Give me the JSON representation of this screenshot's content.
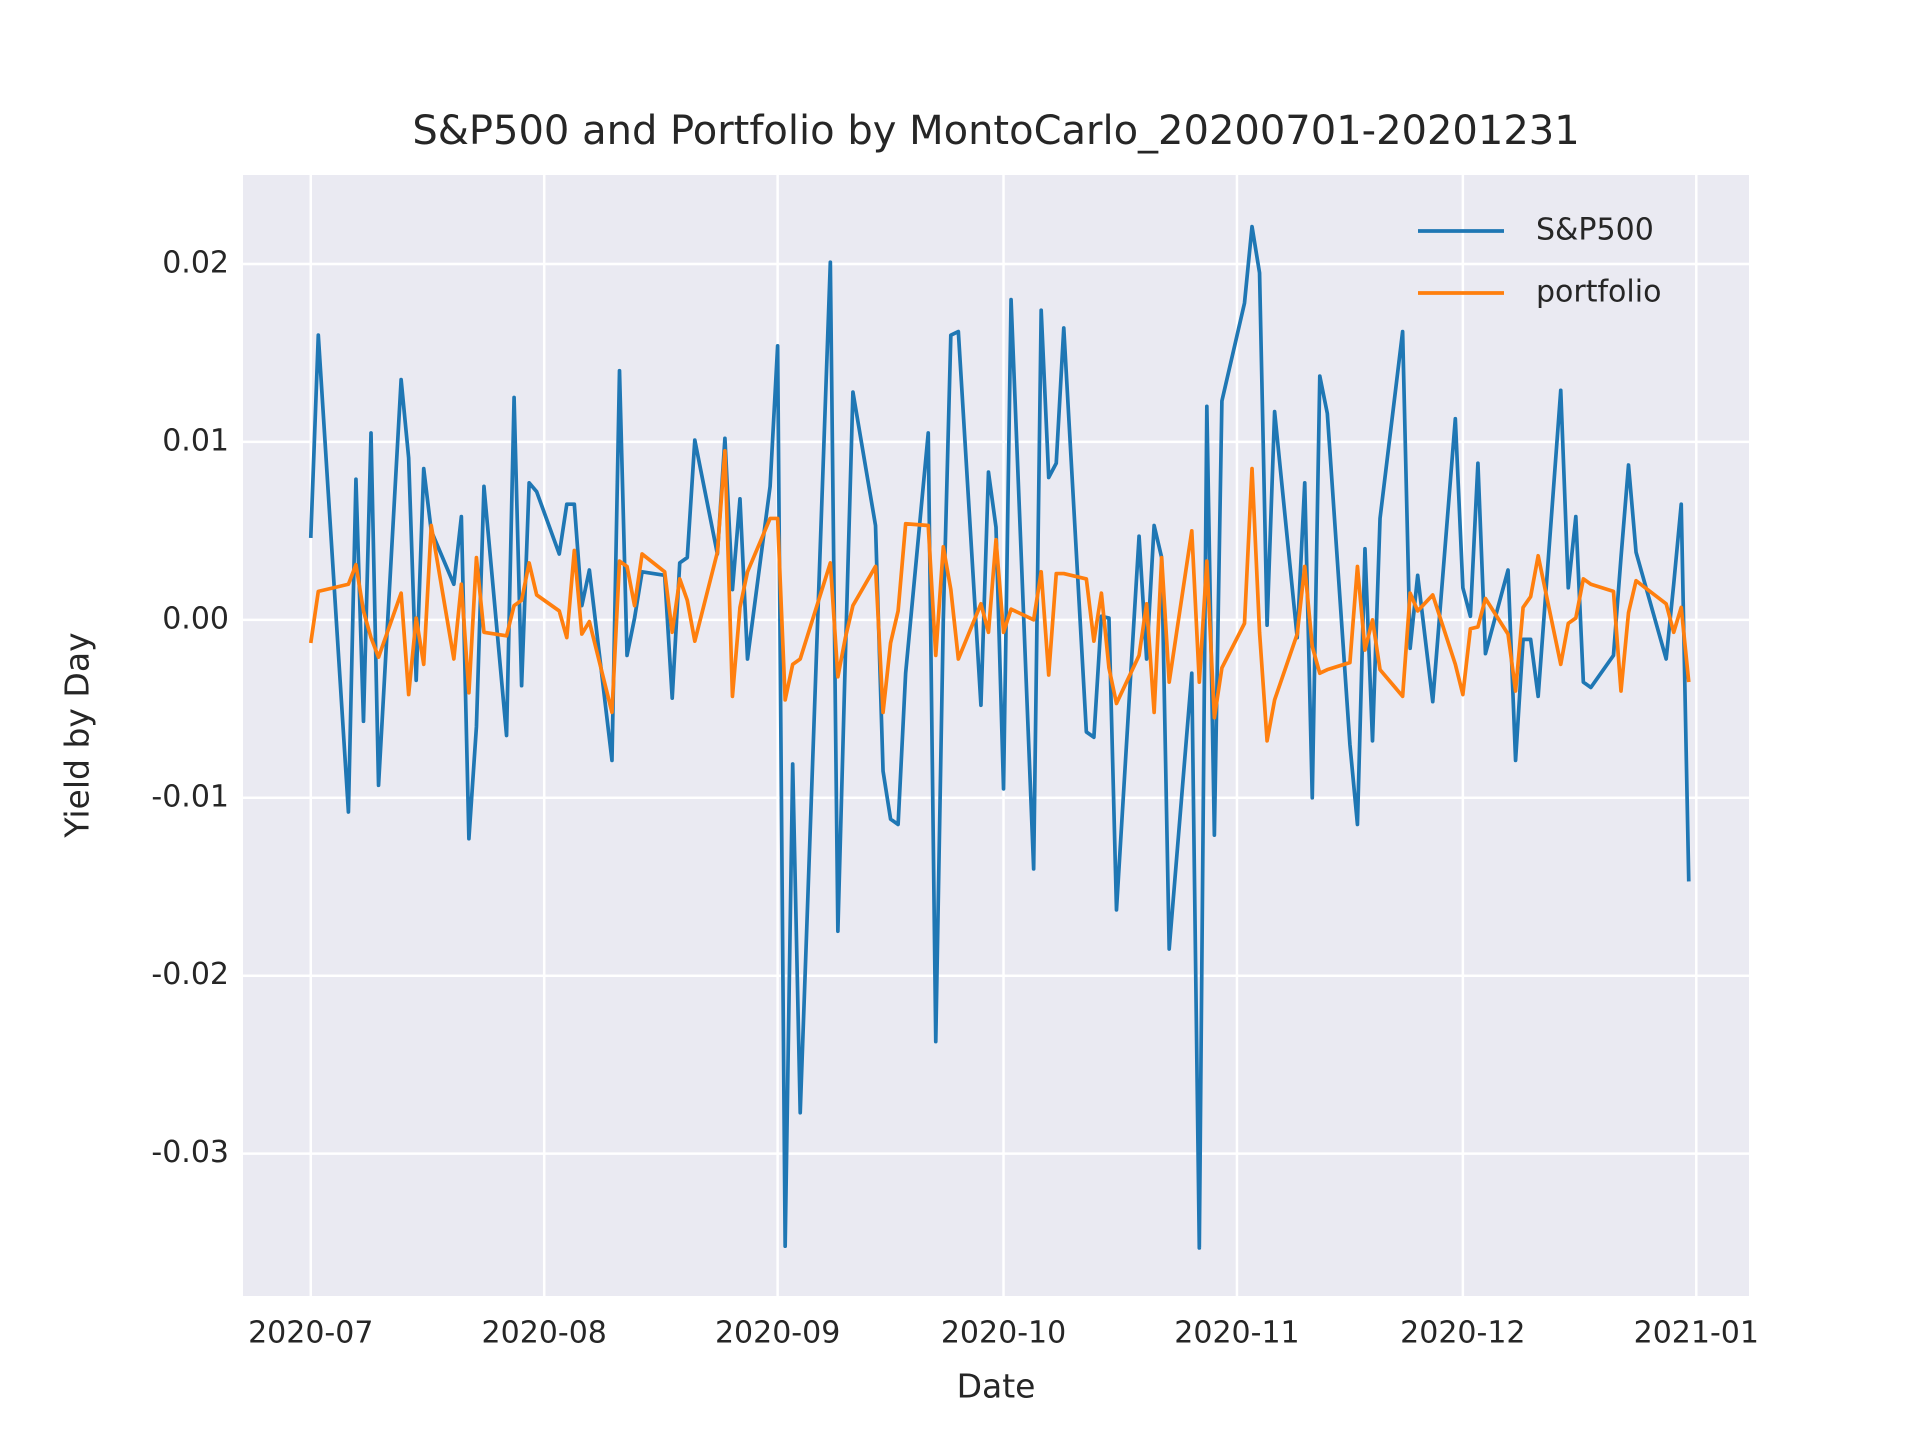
{
  "chart_data": {
    "type": "line",
    "title": "S&P500 and Portfolio by MontoCarlo_20200701-20201231",
    "xlabel": "Date",
    "ylabel": "Yield by Day",
    "x": [
      "2020-07-01",
      "2020-07-02",
      "2020-07-06",
      "2020-07-07",
      "2020-07-08",
      "2020-07-09",
      "2020-07-10",
      "2020-07-13",
      "2020-07-14",
      "2020-07-15",
      "2020-07-16",
      "2020-07-17",
      "2020-07-20",
      "2020-07-21",
      "2020-07-22",
      "2020-07-23",
      "2020-07-24",
      "2020-07-27",
      "2020-07-28",
      "2020-07-29",
      "2020-07-30",
      "2020-07-31",
      "2020-08-03",
      "2020-08-04",
      "2020-08-05",
      "2020-08-06",
      "2020-08-07",
      "2020-08-10",
      "2020-08-11",
      "2020-08-12",
      "2020-08-13",
      "2020-08-14",
      "2020-08-17",
      "2020-08-18",
      "2020-08-19",
      "2020-08-20",
      "2020-08-21",
      "2020-08-24",
      "2020-08-25",
      "2020-08-26",
      "2020-08-27",
      "2020-08-28",
      "2020-08-31",
      "2020-09-01",
      "2020-09-02",
      "2020-09-03",
      "2020-09-04",
      "2020-09-08",
      "2020-09-09",
      "2020-09-10",
      "2020-09-11",
      "2020-09-14",
      "2020-09-15",
      "2020-09-16",
      "2020-09-17",
      "2020-09-18",
      "2020-09-21",
      "2020-09-22",
      "2020-09-23",
      "2020-09-24",
      "2020-09-25",
      "2020-09-28",
      "2020-09-29",
      "2020-09-30",
      "2020-10-01",
      "2020-10-02",
      "2020-10-05",
      "2020-10-06",
      "2020-10-07",
      "2020-10-08",
      "2020-10-09",
      "2020-10-12",
      "2020-10-13",
      "2020-10-14",
      "2020-10-15",
      "2020-10-16",
      "2020-10-19",
      "2020-10-20",
      "2020-10-21",
      "2020-10-22",
      "2020-10-23",
      "2020-10-26",
      "2020-10-27",
      "2020-10-28",
      "2020-10-29",
      "2020-10-30",
      "2020-11-02",
      "2020-11-03",
      "2020-11-04",
      "2020-11-05",
      "2020-11-06",
      "2020-11-09",
      "2020-11-10",
      "2020-11-11",
      "2020-11-12",
      "2020-11-13",
      "2020-11-16",
      "2020-11-17",
      "2020-11-18",
      "2020-11-19",
      "2020-11-20",
      "2020-11-23",
      "2020-11-24",
      "2020-11-25",
      "2020-11-27",
      "2020-11-30",
      "2020-12-01",
      "2020-12-02",
      "2020-12-03",
      "2020-12-04",
      "2020-12-07",
      "2020-12-08",
      "2020-12-09",
      "2020-12-10",
      "2020-12-11",
      "2020-12-14",
      "2020-12-15",
      "2020-12-16",
      "2020-12-17",
      "2020-12-18",
      "2020-12-21",
      "2020-12-22",
      "2020-12-23",
      "2020-12-24",
      "2020-12-28",
      "2020-12-29",
      "2020-12-30",
      "2020-12-31"
    ],
    "series": [
      {
        "name": "S&P500",
        "color": "#1f77b4",
        "values": [
          0.0046,
          0.016,
          -0.0108,
          0.0079,
          -0.0057,
          0.0105,
          -0.0093,
          0.0135,
          0.0091,
          -0.0034,
          0.0085,
          0.005,
          0.002,
          0.0058,
          -0.0123,
          -0.006,
          0.0075,
          -0.0065,
          0.0125,
          -0.0037,
          0.0077,
          0.0072,
          0.0037,
          0.0065,
          0.0065,
          0.0008,
          0.0028,
          -0.0079,
          0.014,
          -0.002,
          0.0001,
          0.0027,
          0.0025,
          -0.0044,
          0.0032,
          0.0035,
          0.0101,
          0.0037,
          0.0102,
          0.0017,
          0.0068,
          -0.0022,
          0.0075,
          0.0154,
          -0.0352,
          -0.0081,
          -0.0277,
          0.0201,
          -0.0175,
          -0.002,
          0.0128,
          0.0053,
          -0.0085,
          -0.0112,
          -0.0115,
          -0.003,
          0.0105,
          -0.0237,
          0,
          0.016,
          0.0162,
          -0.0048,
          0.0083,
          0.0052,
          -0.0095,
          0.018,
          -0.014,
          0.0174,
          0.008,
          0.0088,
          0.0164,
          -0.0063,
          -0.0066,
          0.0002,
          0.0001,
          -0.0163,
          0.0047,
          -0.0022,
          0.0053,
          0.0035,
          -0.0185,
          -0.003,
          -0.0353,
          0.012,
          -0.0121,
          0.0123,
          0.0178,
          0.0221,
          0.0195,
          -0.0003,
          0.0117,
          -0.001,
          0.0077,
          -0.01,
          0.0137,
          0.0116,
          -0.007,
          -0.0115,
          0.004,
          -0.0068,
          0.0057,
          0.0162,
          -0.0016,
          0.0025,
          -0.0046,
          0.0113,
          0.0018,
          0.0002,
          0.0088,
          -0.0019,
          0.0028,
          -0.0079,
          -0.0011,
          -0.0011,
          -0.0043,
          0.0129,
          0.0018,
          0.0058,
          -0.0035,
          -0.0038,
          -0.002,
          0.0035,
          0.0087,
          0.0038,
          -0.0022,
          0.002,
          0.0065,
          -0.0147
        ]
      },
      {
        "name": "portfolio",
        "color": "#ff7f0e",
        "values": [
          -0.0013,
          0.0016,
          0.002,
          0.0031,
          0.0005,
          -0.001,
          -0.0021,
          0.0015,
          -0.0042,
          0.0001,
          -0.0025,
          0.0053,
          -0.0022,
          0.002,
          -0.0041,
          0.0035,
          -0.0007,
          -0.0009,
          0.0008,
          0.0011,
          0.0032,
          0.0014,
          0.0005,
          -0.001,
          0.0039,
          -0.0008,
          -0.0001,
          -0.0052,
          0.0033,
          0.003,
          0.0008,
          0.0037,
          0.0027,
          -0.0007,
          0.0023,
          0.0011,
          -0.0012,
          0.0038,
          0.0095,
          -0.0043,
          0.0007,
          0.0027,
          0.0057,
          0.0057,
          -0.0045,
          -0.0025,
          -0.0022,
          0.0032,
          -0.0032,
          -0.001,
          0.0008,
          0.003,
          -0.0052,
          -0.0013,
          0.0005,
          0.0054,
          0.0053,
          -0.002,
          0.0041,
          0.0017,
          -0.0022,
          0.0009,
          -0.0007,
          0.0045,
          -0.0007,
          0.0006,
          0,
          0.0027,
          -0.0031,
          0.0026,
          0.0026,
          0.0023,
          -0.0012,
          0.0015,
          -0.0027,
          -0.0047,
          -0.002,
          0.0009,
          -0.0052,
          0.0035,
          -0.0035,
          0.005,
          -0.0035,
          0.0033,
          -0.0055,
          -0.0027,
          -0.0002,
          0.0085,
          -0.0007,
          -0.0068,
          -0.0045,
          -0.0008,
          0.003,
          -0.0015,
          -0.003,
          -0.0028,
          -0.0024,
          0.003,
          -0.0017,
          0,
          -0.0028,
          -0.0043,
          0.0015,
          0.0005,
          0.0014,
          -0.0025,
          -0.0042,
          -0.0005,
          -0.0004,
          0.0012,
          -0.0008,
          -0.004,
          0.0007,
          0.0013,
          0.0036,
          -0.0025,
          -0.0002,
          0.0001,
          0.0023,
          0.002,
          0.0016,
          -0.004,
          0.0004,
          0.0022,
          0.0009,
          -0.0007,
          0.0007,
          -0.0035
        ]
      }
    ],
    "xlim": [
      "2020-06-22",
      "2021-01-08"
    ],
    "xticks": [
      {
        "value": "2020-07-01",
        "label": "2020-07"
      },
      {
        "value": "2020-08-01",
        "label": "2020-08"
      },
      {
        "value": "2020-09-01",
        "label": "2020-09"
      },
      {
        "value": "2020-10-01",
        "label": "2020-10"
      },
      {
        "value": "2020-11-01",
        "label": "2020-11"
      },
      {
        "value": "2020-12-01",
        "label": "2020-12"
      },
      {
        "value": "2021-01-01",
        "label": "2021-01"
      }
    ],
    "ylim": [
      -0.038,
      0.025
    ],
    "yticks": [
      -0.03,
      -0.02,
      -0.01,
      {
        "value": 0,
        "label": "0.00"
      },
      0.01,
      0.02
    ],
    "grid": true,
    "legend": "upper right"
  }
}
